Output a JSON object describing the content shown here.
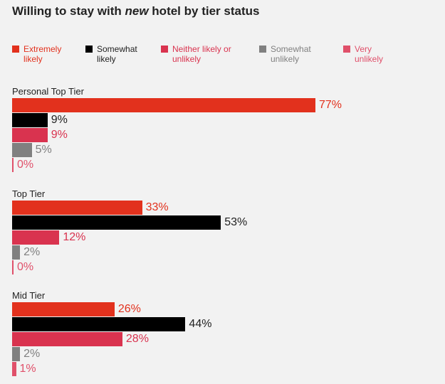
{
  "chart_data": {
    "type": "bar",
    "title": {
      "prefix": "Willing to stay with ",
      "emphasis": "new",
      "suffix": " hotel by tier status"
    },
    "legend": [
      {
        "name": "Extremely\nlikely",
        "color": "#e2311d",
        "text_color": "#e2311d"
      },
      {
        "name": "Somewhat\nlikely",
        "color": "#000000",
        "text_color": "#222222"
      },
      {
        "name": "Neither likely or\nunlikely",
        "color": "#d9334f",
        "text_color": "#d9334f"
      },
      {
        "name": "Somewhat\nunlikely",
        "color": "#808080",
        "text_color": "#808080"
      },
      {
        "name": "Very\nunlikely",
        "color": "#e0506a",
        "text_color": "#e0506a"
      }
    ],
    "categories": [
      "Personal Top Tier",
      "Top Tier",
      "Mid Tier"
    ],
    "series": [
      {
        "values": [
          77,
          33,
          26
        ],
        "color": "#e2311d",
        "label_color": "#e2311d"
      },
      {
        "values": [
          9,
          53,
          44
        ],
        "color": "#000000",
        "label_color": "#222222"
      },
      {
        "values": [
          9,
          12,
          28
        ],
        "color": "#d9334f",
        "label_color": "#d9334f"
      },
      {
        "values": [
          5,
          2,
          2
        ],
        "color": "#808080",
        "label_color": "#808080"
      },
      {
        "values": [
          0,
          0,
          1
        ],
        "color": "#e0506a",
        "label_color": "#e0506a"
      }
    ],
    "value_suffix": "%",
    "xlim": [
      0,
      100
    ],
    "legend_position": "top",
    "grid": false
  }
}
